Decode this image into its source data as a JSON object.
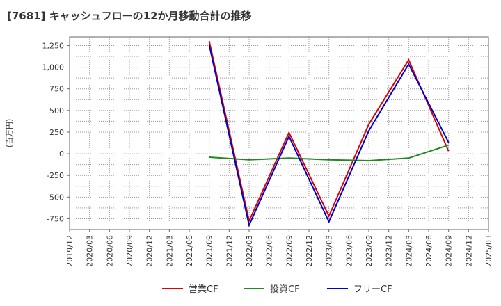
{
  "chart_data": {
    "type": "line",
    "title": "[7681]  キャッシュフローの12か月移動合計の推移",
    "ylabel": "(百万円)",
    "xlabel": "",
    "ylim": [
      -875,
      1350
    ],
    "yticks": [
      1250,
      1000,
      750,
      500,
      250,
      0,
      -250,
      -500,
      -750
    ],
    "ytick_labels": [
      "1,250",
      "1,000",
      "750",
      "500",
      "250",
      "0",
      "-250",
      "-500",
      "-750"
    ],
    "categories": [
      "2019/12",
      "2020/03",
      "2020/06",
      "2020/09",
      "2020/12",
      "2021/03",
      "2021/06",
      "2021/09",
      "2021/12",
      "2022/03",
      "2022/06",
      "2022/09",
      "2022/12",
      "2023/03",
      "2023/06",
      "2023/09",
      "2023/12",
      "2024/03",
      "2024/06",
      "2024/09",
      "2024/12",
      "2025/03"
    ],
    "grid": true,
    "legend_position": "bottom",
    "series": [
      {
        "name": "営業CF",
        "color": "#dd0000",
        "points": [
          [
            "2021/09",
            1300
          ],
          [
            "2022/03",
            -775
          ],
          [
            "2022/09",
            245
          ],
          [
            "2023/03",
            -720
          ],
          [
            "2023/09",
            340
          ],
          [
            "2024/03",
            1085
          ],
          [
            "2024/09",
            30
          ]
        ]
      },
      {
        "name": "投資CF",
        "color": "#228822",
        "points": [
          [
            "2021/09",
            -40
          ],
          [
            "2022/03",
            -70
          ],
          [
            "2022/09",
            -50
          ],
          [
            "2023/03",
            -70
          ],
          [
            "2023/09",
            -80
          ],
          [
            "2024/03",
            -50
          ],
          [
            "2024/09",
            100
          ]
        ]
      },
      {
        "name": "フリーCF",
        "color": "#0000cc",
        "points": [
          [
            "2021/09",
            1255
          ],
          [
            "2022/03",
            -825
          ],
          [
            "2022/09",
            200
          ],
          [
            "2023/03",
            -785
          ],
          [
            "2023/09",
            265
          ],
          [
            "2024/03",
            1035
          ],
          [
            "2024/09",
            130
          ]
        ]
      }
    ]
  }
}
